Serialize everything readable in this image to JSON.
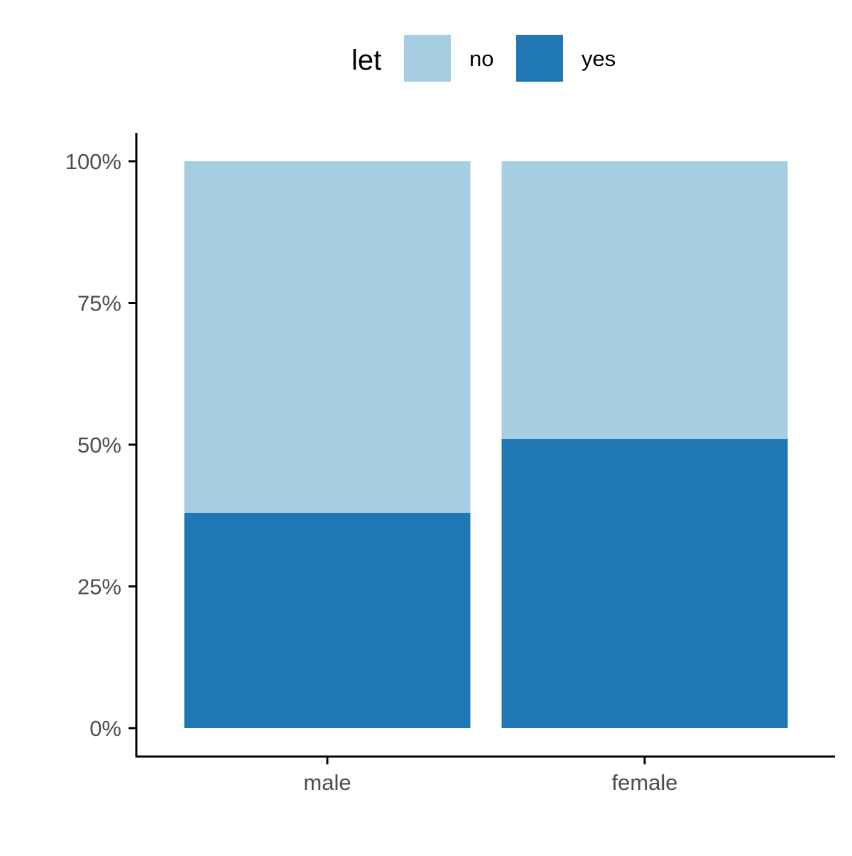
{
  "chart_data": {
    "type": "bar",
    "stacked": true,
    "normalized": true,
    "categories": [
      "male",
      "female"
    ],
    "series": [
      {
        "name": "no",
        "values": [
          0.62,
          0.49
        ],
        "color": "#A6CEE3"
      },
      {
        "name": "yes",
        "values": [
          0.38,
          0.51
        ],
        "color": "#1F78B4"
      }
    ],
    "legend": {
      "title": "let",
      "position": "top",
      "entries": [
        "no",
        "yes"
      ]
    },
    "y_ticks": [
      0,
      0.25,
      0.5,
      0.75,
      1.0
    ],
    "y_tick_labels": [
      "0%",
      "25%",
      "50%",
      "75%",
      "100%"
    ],
    "ylim": [
      0,
      1
    ],
    "xlabel": "",
    "ylabel": "",
    "title": "",
    "grid": false
  }
}
